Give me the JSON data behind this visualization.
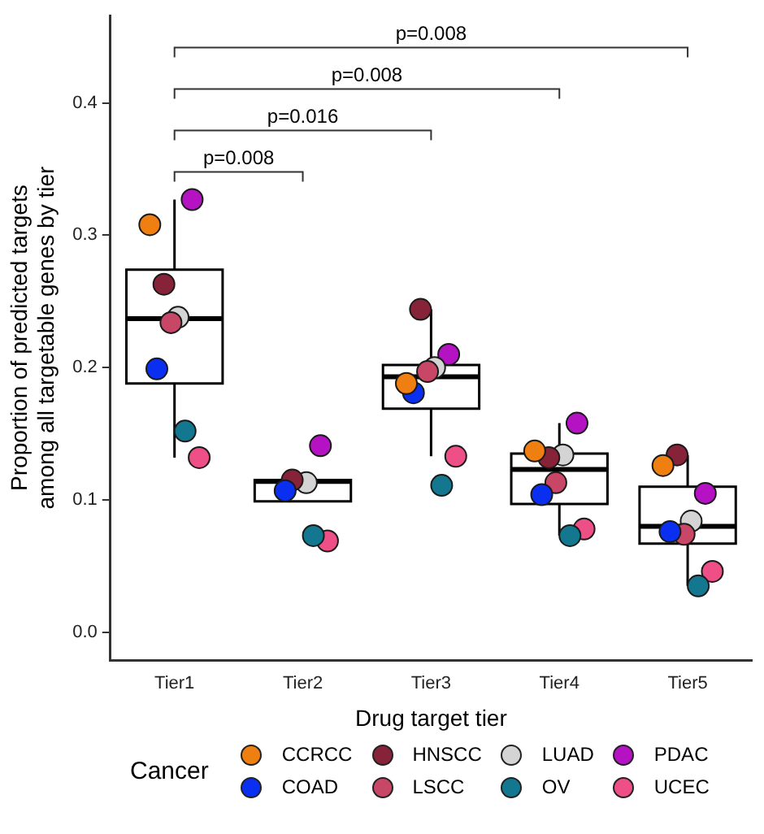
{
  "chart_data": {
    "type": "box",
    "xlabel": "Drug target tier",
    "ylabel": "Proportion of predicted targets\namong all targetable genes by tier",
    "legend_title": "Cancer",
    "legend": "bottom",
    "grid": false,
    "marker": "circle",
    "categories": [
      "Tier1",
      "Tier2",
      "Tier3",
      "Tier4",
      "Tier5"
    ],
    "ylim": [
      -0.021,
      0.466
    ],
    "yticks": [
      {
        "value": 0,
        "label": "0.0"
      },
      {
        "value": 0.1,
        "label": "0.1"
      },
      {
        "value": 0.2,
        "label": "0.2"
      },
      {
        "value": 0.3,
        "label": "0.3"
      },
      {
        "value": 0.4,
        "label": "0.4"
      }
    ],
    "boxes": [
      {
        "low": 0.132,
        "q1": 0.188,
        "median": 0.237,
        "q3": 0.274,
        "high": 0.327
      },
      {
        "low": 0.099,
        "q1": 0.099,
        "median": 0.114,
        "q3": 0.115,
        "high": 0.115
      },
      {
        "low": 0.133,
        "q1": 0.169,
        "median": 0.193,
        "q3": 0.202,
        "high": 0.244
      },
      {
        "low": 0.073,
        "q1": 0.097,
        "median": 0.123,
        "q3": 0.135,
        "high": 0.158
      },
      {
        "low": 0.035,
        "q1": 0.067,
        "median": 0.08,
        "q3": 0.11,
        "high": 0.134
      }
    ],
    "series": [
      {
        "type": "scatter",
        "name": "CCRCC",
        "color": "#f07f12",
        "x": [
          "Tier1",
          "Tier2",
          "Tier3",
          "Tier4",
          "Tier5"
        ],
        "values": [
          0.308,
          null,
          0.188,
          0.137,
          0.126
        ]
      },
      {
        "type": "scatter",
        "name": "COAD",
        "color": "#0a2ff0",
        "x": [
          "Tier1",
          "Tier2",
          "Tier3",
          "Tier4",
          "Tier5"
        ],
        "values": [
          0.199,
          0.107,
          0.181,
          0.104,
          0.076
        ]
      },
      {
        "type": "scatter",
        "name": "HNSCC",
        "color": "#862339",
        "x": [
          "Tier1",
          "Tier2",
          "Tier3",
          "Tier4",
          "Tier5"
        ],
        "values": [
          0.263,
          0.115,
          0.244,
          0.132,
          0.134
        ]
      },
      {
        "type": "scatter",
        "name": "LSCC",
        "color": "#c84766",
        "x": [
          "Tier1",
          "Tier2",
          "Tier3",
          "Tier4",
          "Tier5"
        ],
        "values": [
          0.234,
          null,
          0.197,
          0.113,
          0.074
        ]
      },
      {
        "type": "scatter",
        "name": "LUAD",
        "color": "#d4d4d4",
        "x": [
          "Tier1",
          "Tier2",
          "Tier3",
          "Tier4",
          "Tier5"
        ],
        "values": [
          0.238,
          0.113,
          0.2,
          0.134,
          0.084
        ]
      },
      {
        "type": "scatter",
        "name": "OV",
        "color": "#13788f",
        "x": [
          "Tier1",
          "Tier2",
          "Tier3",
          "Tier4",
          "Tier5"
        ],
        "values": [
          0.152,
          0.073,
          0.111,
          0.073,
          0.035
        ]
      },
      {
        "type": "scatter",
        "name": "PDAC",
        "color": "#b512c4",
        "x": [
          "Tier1",
          "Tier2",
          "Tier3",
          "Tier4",
          "Tier5"
        ],
        "values": [
          0.327,
          0.141,
          0.21,
          0.158,
          0.105
        ]
      },
      {
        "type": "scatter",
        "name": "UCEC",
        "color": "#ee4f87",
        "x": [
          "Tier1",
          "Tier2",
          "Tier3",
          "Tier4",
          "Tier5"
        ],
        "values": [
          0.132,
          0.069,
          0.133,
          0.078,
          0.046
        ]
      }
    ],
    "annotations": [
      "p=0.008",
      "p=0.016",
      "p=0.008",
      "p=0.008"
    ]
  }
}
